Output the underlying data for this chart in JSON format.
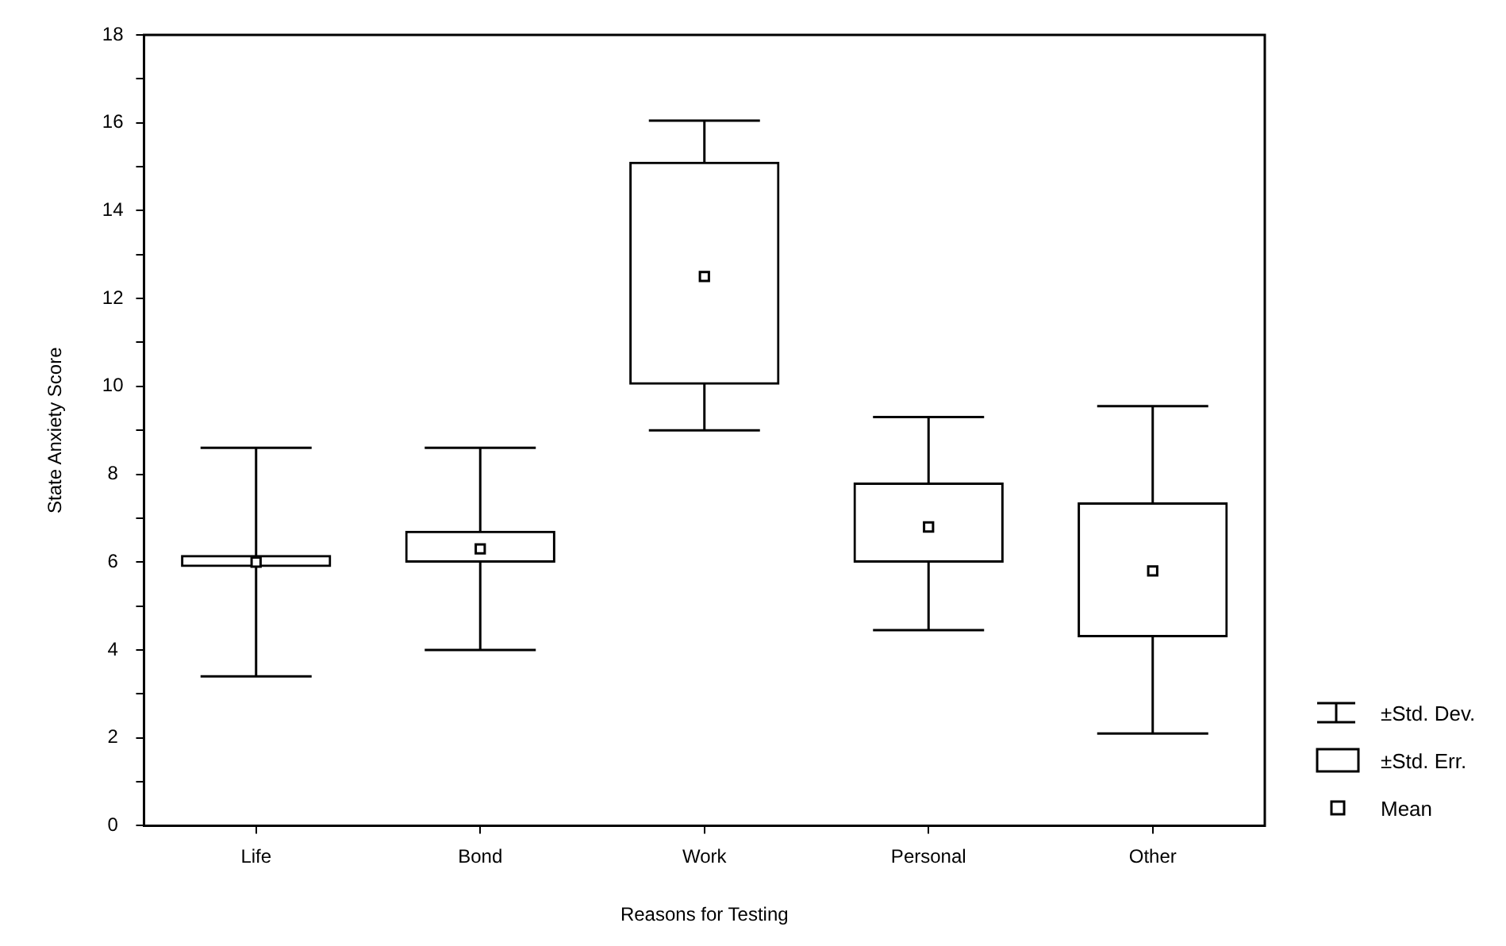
{
  "chart_data": {
    "type": "box",
    "xlabel": "Reasons for Testing",
    "ylabel": "State Anxiety Score",
    "categories": [
      "Life",
      "Bond",
      "Work",
      "Personal",
      "Other"
    ],
    "boxes": [
      {
        "low": 3.4,
        "q1": 5.9,
        "q3": 6.15,
        "high": 8.6,
        "mean": 6.0
      },
      {
        "low": 4.0,
        "q1": 6.0,
        "q3": 6.7,
        "high": 8.6,
        "mean": 6.3
      },
      {
        "low": 9.0,
        "q1": 10.05,
        "q3": 15.1,
        "high": 16.05,
        "mean": 12.5
      },
      {
        "low": 4.45,
        "q1": 6.0,
        "q3": 7.8,
        "high": 9.3,
        "mean": 6.8
      },
      {
        "low": 2.1,
        "q1": 4.3,
        "q3": 7.35,
        "high": 9.55,
        "mean": 5.8
      }
    ],
    "color": "#000000",
    "ylim": [
      0,
      18
    ],
    "yticks": [
      0,
      {
        "value": 1,
        "label": null
      },
      2,
      {
        "value": 3,
        "label": null
      },
      4,
      {
        "value": 5,
        "label": null
      },
      6,
      {
        "value": 7,
        "label": null
      },
      8,
      {
        "value": 9,
        "label": null
      },
      10,
      {
        "value": 11,
        "label": null
      },
      12,
      {
        "value": 13,
        "label": null
      },
      14,
      {
        "value": 15,
        "label": null
      },
      16,
      {
        "value": 17,
        "label": null
      },
      18
    ],
    "grid": false,
    "marker": "square",
    "annotations": [
      "±Std. Dev.",
      "±Std. Err.",
      "Mean"
    ]
  }
}
